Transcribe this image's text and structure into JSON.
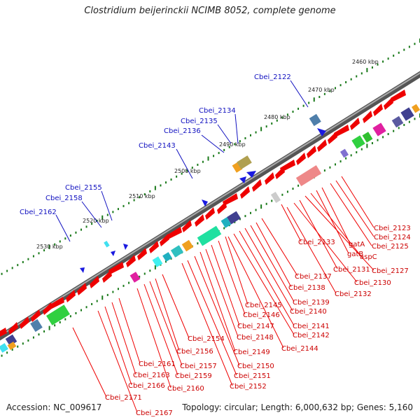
{
  "title": "Clostridium beijerinckii NCIMB 8052, complete genome",
  "accession": "Accession: NC_009617",
  "stats": "Topology: circular; Length: 6,000,632 bp; Genes: 5,160",
  "colors": {
    "backbone": "#777777",
    "forward_gene": "#ee0000",
    "tick": "#1a7a1a",
    "label_blue": "#1010c0",
    "label_red": "#cc0000"
  },
  "scale_labels": [
    "2460 kbp",
    "2470 kbp",
    "2480 kbp",
    "2490 kbp",
    "2500 kbp",
    "2510 kbp",
    "2520 kbp",
    "2530 kbp"
  ],
  "gene_labels_top": [
    "Cbei_2122",
    "Cbei_2134",
    "Cbei_2135",
    "Cbei_2136",
    "Cbei_2143",
    "Cbei_2155",
    "Cbei_2158",
    "Cbei_2162"
  ],
  "gene_labels_bottom": [
    "Cbei_2123",
    "Cbei_2124",
    "Cbei_2125",
    "Cbei_2133",
    "gatA",
    "gatB",
    "aspC",
    "Cbei_2127",
    "Cbei_2131",
    "Cbei_2130",
    "Cbei_2137",
    "Cbei_2138",
    "Cbei_2132",
    "Cbei_2139",
    "Cbei_2145",
    "Cbei_2140",
    "Cbei_2146",
    "Cbei_2147",
    "Cbei_2141",
    "Cbei_2142",
    "Cbei_2148",
    "Cbei_2144",
    "Cbei_2154",
    "Cbei_2149",
    "Cbei_2156",
    "Cbei_2161",
    "Cbei_2157",
    "Cbei_2150",
    "Cbei_2163",
    "Cbei_2159",
    "Cbei_2151",
    "Cbei_2166",
    "Cbei_2160",
    "Cbei_2152",
    "Cbei_2171",
    "Cbei_2167"
  ]
}
